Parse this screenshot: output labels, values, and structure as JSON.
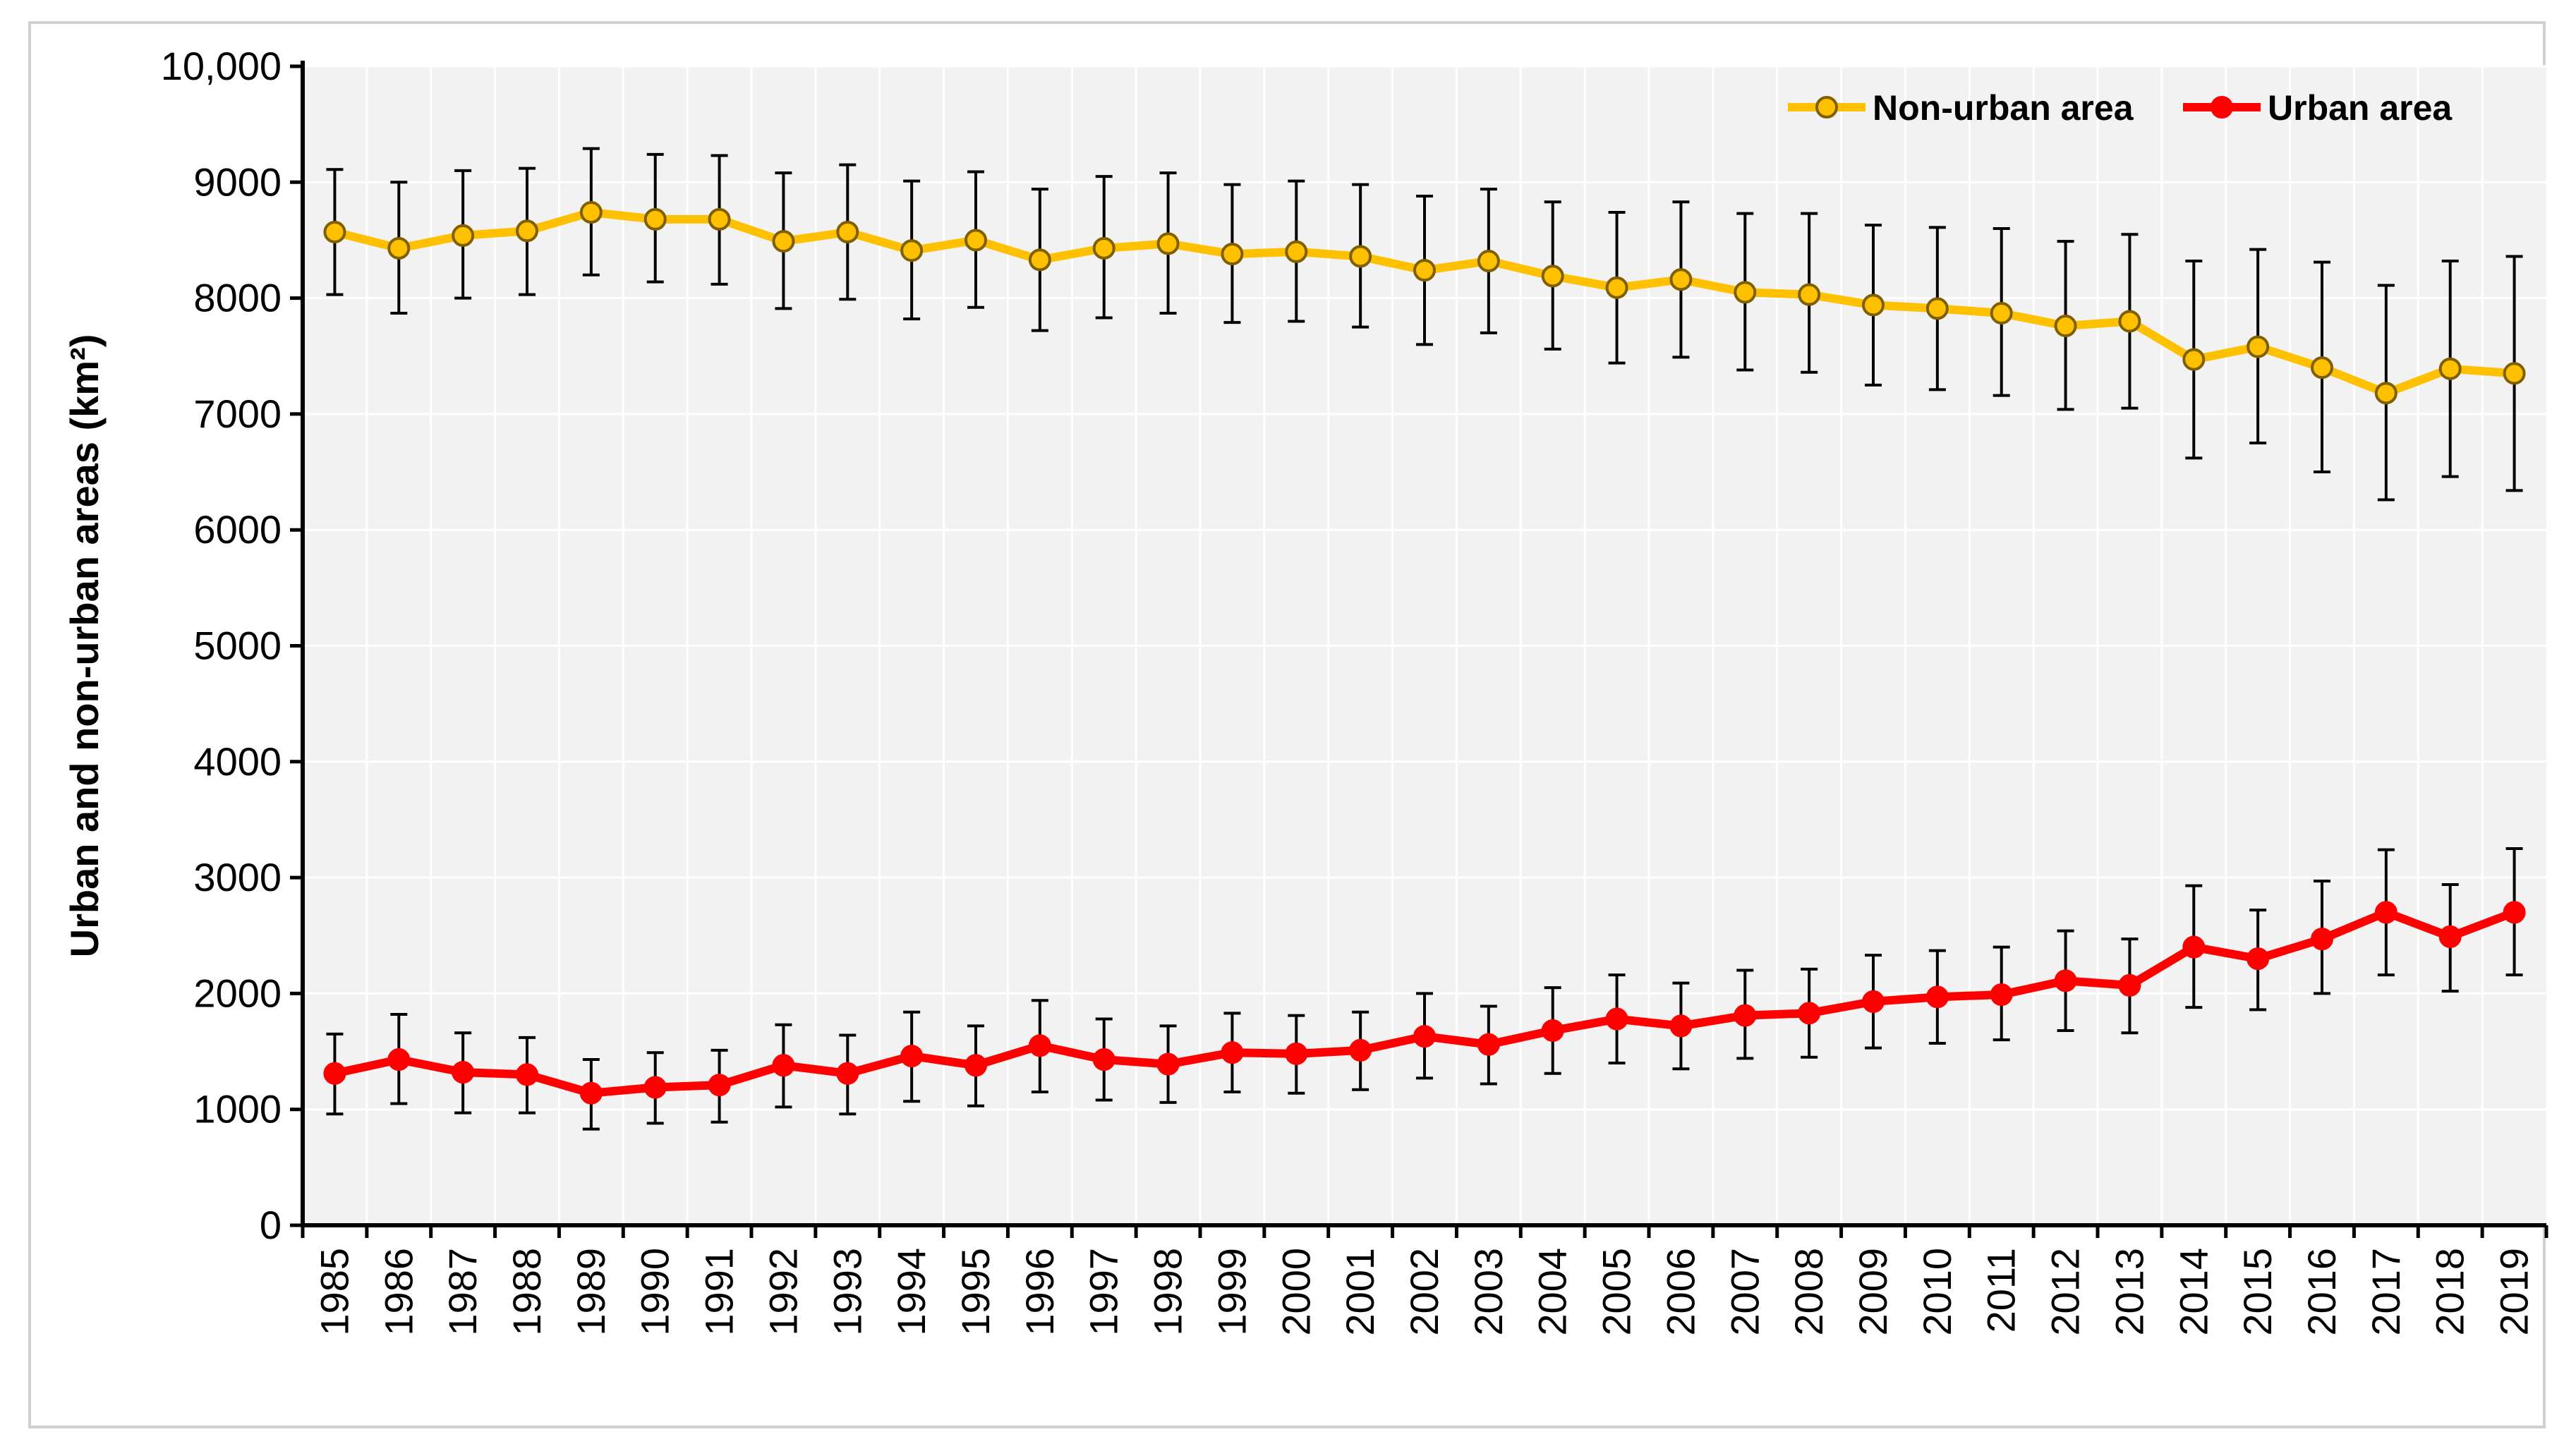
{
  "chart_data": {
    "type": "line",
    "title": "",
    "xlabel": "",
    "ylabel": "Urban and non-urban areas (km²)",
    "ylim": [
      0,
      10000
    ],
    "yticks": [
      0,
      1000,
      2000,
      3000,
      4000,
      5000,
      6000,
      7000,
      8000,
      9000,
      10000
    ],
    "ytick_labels": [
      "0",
      "1000",
      "2000",
      "3000",
      "4000",
      "5000",
      "6000",
      "7000",
      "8000",
      "9000",
      "10,000"
    ],
    "grid": true,
    "legend_position": "top-right",
    "categories": [
      "1985",
      "1986",
      "1987",
      "1988",
      "1989",
      "1990",
      "1991",
      "1992",
      "1993",
      "1994",
      "1995",
      "1996",
      "1997",
      "1998",
      "1999",
      "2000",
      "2001",
      "2002",
      "2003",
      "2004",
      "2005",
      "2006",
      "2007",
      "2008",
      "2009",
      "2010",
      "2011",
      "2012",
      "2013",
      "2014",
      "2015",
      "2016",
      "2017",
      "2018",
      "2019"
    ],
    "series": [
      {
        "name": "Non-urban area",
        "color": "#FFC000",
        "marker_fill": "#FFC000",
        "marker_edge": "#7f6000",
        "values": [
          8570,
          8430,
          8540,
          8580,
          8740,
          8680,
          8680,
          8490,
          8570,
          8410,
          8500,
          8330,
          8430,
          8470,
          8380,
          8400,
          8360,
          8240,
          8320,
          8190,
          8090,
          8160,
          8050,
          8030,
          7940,
          7910,
          7870,
          7760,
          7800,
          7470,
          7580,
          7400,
          7180,
          7390,
          7350
        ],
        "err_low": [
          8030,
          7870,
          8000,
          8030,
          8200,
          8140,
          8120,
          7910,
          7990,
          7820,
          7920,
          7720,
          7830,
          7870,
          7790,
          7800,
          7750,
          7600,
          7700,
          7560,
          7440,
          7490,
          7380,
          7360,
          7250,
          7210,
          7160,
          7040,
          7050,
          6620,
          6750,
          6500,
          6260,
          6460,
          6340
        ],
        "err_high": [
          9110,
          9000,
          9100,
          9120,
          9290,
          9240,
          9230,
          9080,
          9150,
          9010,
          9090,
          8940,
          9050,
          9080,
          8980,
          9010,
          8980,
          8880,
          8940,
          8830,
          8740,
          8830,
          8730,
          8730,
          8630,
          8610,
          8600,
          8490,
          8550,
          8320,
          8420,
          8310,
          8110,
          8320,
          8360
        ]
      },
      {
        "name": "Urban area",
        "color": "#FF0000",
        "marker_fill": "#FF0000",
        "marker_edge": "#FF0000",
        "values": [
          1310,
          1430,
          1320,
          1300,
          1140,
          1190,
          1210,
          1380,
          1310,
          1460,
          1380,
          1550,
          1430,
          1390,
          1490,
          1480,
          1510,
          1630,
          1560,
          1680,
          1780,
          1720,
          1810,
          1830,
          1930,
          1970,
          1990,
          2110,
          2070,
          2400,
          2300,
          2470,
          2700,
          2490,
          2700
        ],
        "err_low": [
          960,
          1050,
          970,
          970,
          830,
          880,
          890,
          1020,
          960,
          1070,
          1030,
          1150,
          1080,
          1060,
          1150,
          1140,
          1170,
          1270,
          1220,
          1310,
          1400,
          1350,
          1440,
          1450,
          1530,
          1570,
          1600,
          1680,
          1660,
          1880,
          1860,
          2000,
          2160,
          2020,
          2160
        ],
        "err_high": [
          1650,
          1820,
          1660,
          1620,
          1430,
          1490,
          1510,
          1730,
          1640,
          1840,
          1720,
          1940,
          1780,
          1720,
          1830,
          1810,
          1840,
          2000,
          1890,
          2050,
          2160,
          2090,
          2200,
          2210,
          2330,
          2370,
          2400,
          2540,
          2470,
          2930,
          2720,
          2970,
          3240,
          2940,
          3250
        ]
      }
    ]
  }
}
